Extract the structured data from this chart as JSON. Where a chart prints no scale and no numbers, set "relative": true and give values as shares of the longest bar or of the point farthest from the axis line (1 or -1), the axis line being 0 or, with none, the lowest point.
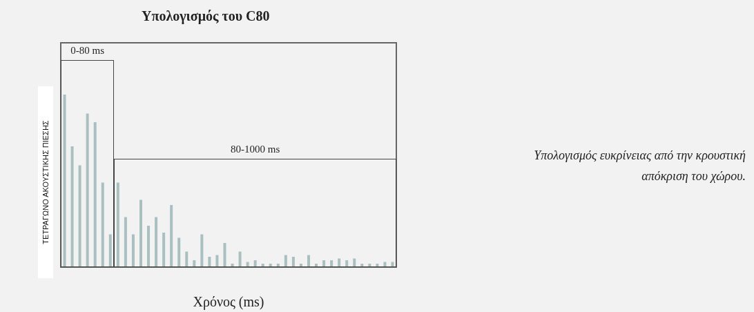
{
  "chart_data": {
    "type": "bar",
    "relative": true,
    "title": "Υπολογισμός του C80",
    "xlabel": "Χρόνος (ms)",
    "ylabel": "ΤΕΤΡΑΓΩΝΟ ΑΚΟΥΣΤΙΚΗΣ ΠΙΕΣΗΣ",
    "annotations": [
      "0-80 ms",
      "80-1000 ms",
      "Υπολογισμός ευκρίνειας από την κρουστική απόκριση του χώρου."
    ],
    "categories": [
      null,
      null,
      null,
      null,
      null,
      null,
      null,
      null,
      null,
      null,
      null,
      null,
      null,
      null,
      null,
      null,
      null,
      null,
      null,
      null,
      null,
      null,
      null,
      null,
      null,
      null,
      null,
      null,
      null,
      null,
      null,
      null,
      null,
      null,
      null,
      null,
      null,
      null,
      null,
      null,
      null,
      null,
      null,
      null
    ],
    "series": [
      {
        "color": "#a9bfc0",
        "values": [
          1.0,
          0.7,
          0.59,
          0.89,
          0.84,
          0.49,
          0.19,
          0.49,
          0.29,
          0.19,
          0.39,
          0.24,
          0.29,
          0.2,
          0.36,
          0.17,
          0.09,
          0.04,
          0.19,
          0.06,
          0.07,
          0.14,
          0.02,
          0.09,
          0.03,
          0.04,
          0.02,
          0.02,
          0.02,
          0.07,
          0.06,
          0.02,
          0.07,
          0.02,
          0.04,
          0.04,
          0.05,
          0.04,
          0.05,
          0.02,
          0.02,
          0.02,
          0.03,
          0.03
        ]
      }
    ]
  }
}
